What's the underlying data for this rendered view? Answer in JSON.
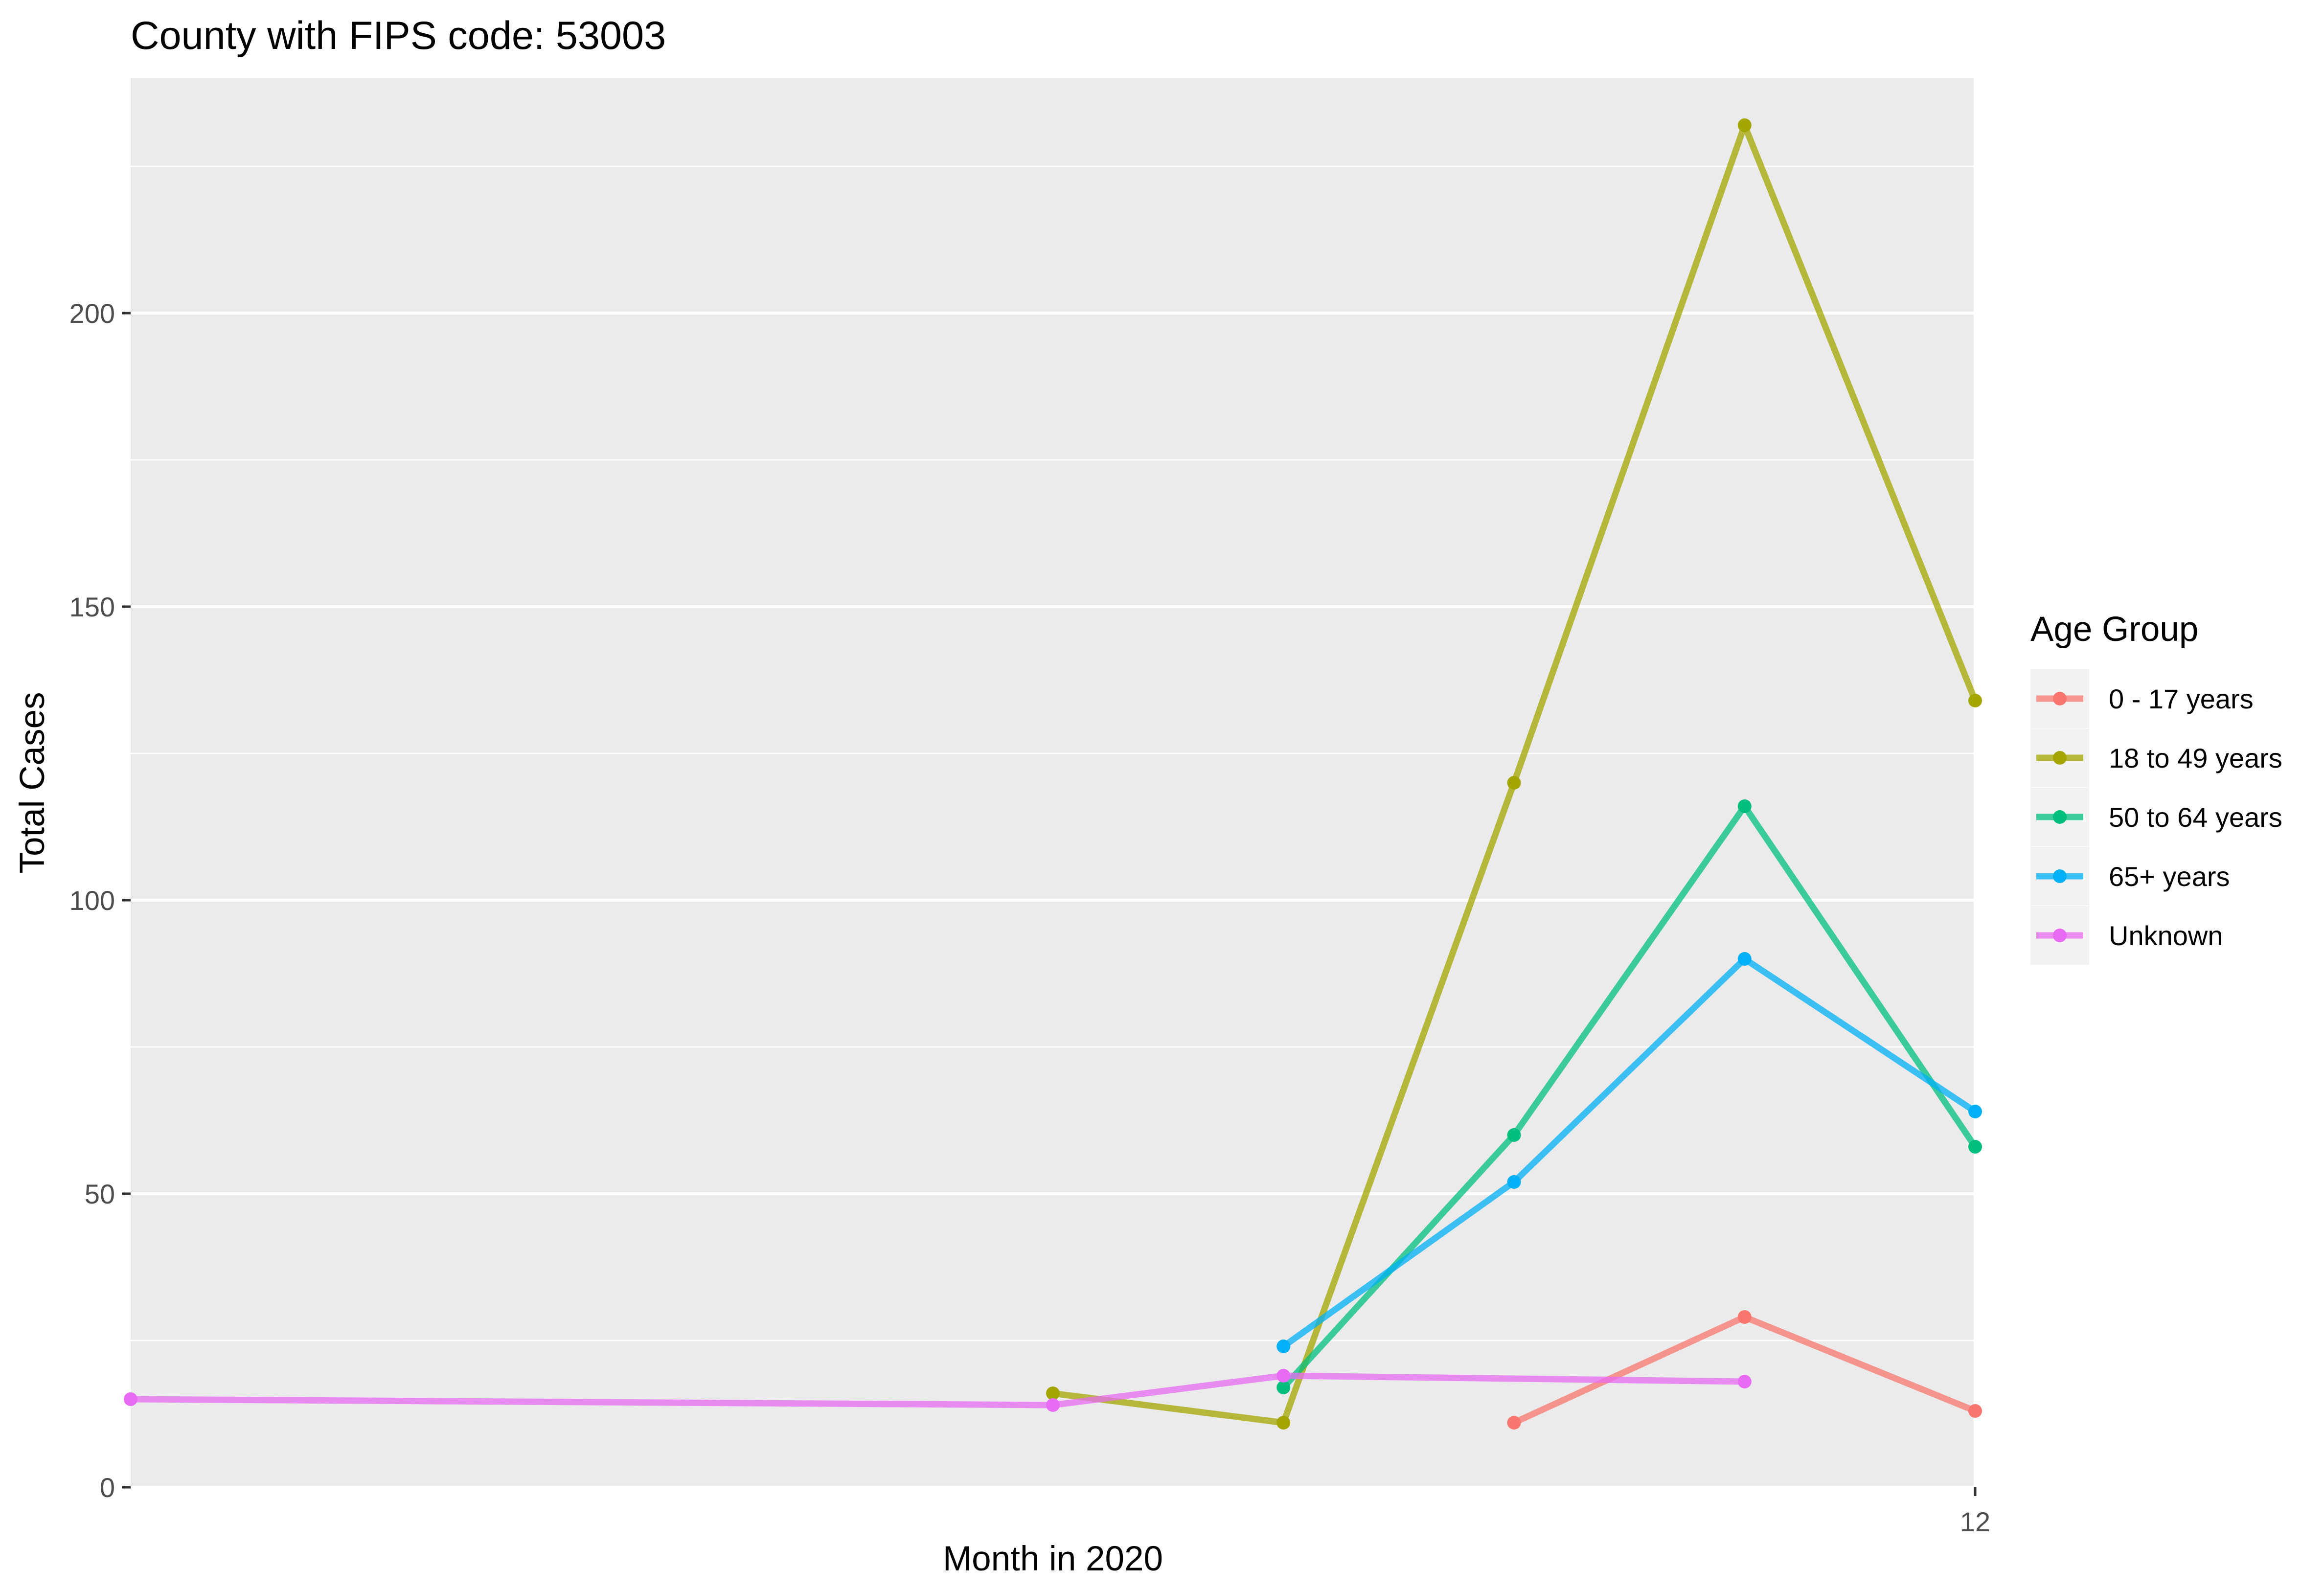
{
  "chart_data": {
    "type": "line",
    "title": "County with FIPS code: 53003",
    "xlabel": "Month in 2020",
    "ylabel": "Total Cases",
    "xlim": [
      8,
      12
    ],
    "ylim": [
      0,
      240
    ],
    "x_ticks": [
      12
    ],
    "y_ticks": [
      0,
      50,
      100,
      150,
      200
    ],
    "grid": true,
    "legend": {
      "title": "Age Group",
      "position": "right"
    },
    "series": [
      {
        "name": "0 - 17 years",
        "color": "#F8766D",
        "x": [
          11.0,
          11.5,
          12.0
        ],
        "values": [
          11,
          29,
          13
        ]
      },
      {
        "name": "18 to 49 years",
        "color": "#A3A500",
        "x": [
          10.0,
          10.5,
          11.0,
          11.5,
          12.0
        ],
        "values": [
          16,
          11,
          120,
          232,
          134
        ]
      },
      {
        "name": "50 to 64 years",
        "color": "#00BF7D",
        "x": [
          10.5,
          11.0,
          11.5,
          12.0
        ],
        "values": [
          17,
          60,
          116,
          58
        ]
      },
      {
        "name": "65+ years",
        "color": "#00B0F6",
        "x": [
          10.5,
          11.0,
          11.5,
          12.0
        ],
        "values": [
          24,
          52,
          90,
          64
        ]
      },
      {
        "name": "Unknown",
        "color": "#E76BF3",
        "x": [
          8.0,
          10.0,
          10.5,
          11.5
        ],
        "values": [
          15,
          14,
          19,
          18
        ]
      }
    ]
  }
}
